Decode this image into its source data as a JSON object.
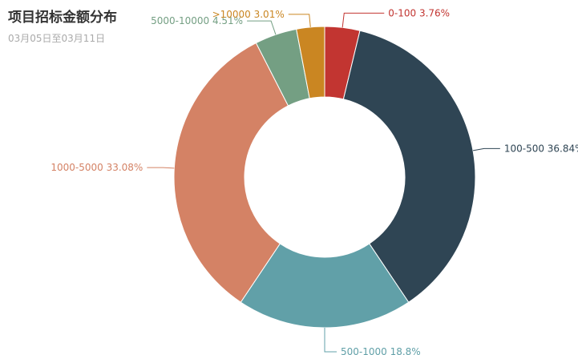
{
  "chart_data": {
    "type": "pie",
    "variant": "donut",
    "title": "项目招标金额分布",
    "subtitle": "03月05日至03月11日",
    "slices": [
      {
        "label": "0-100",
        "percent": "3.76%",
        "value": 3.76,
        "color": "#c23531"
      },
      {
        "label": "100-500",
        "percent": "36.84%",
        "value": 36.84,
        "color": "#2f4554"
      },
      {
        "label": "500-1000",
        "percent": "18.8%",
        "value": 18.8,
        "color": "#61a0a8"
      },
      {
        "label": "1000-5000",
        "percent": "33.08%",
        "value": 33.08,
        "color": "#d48265"
      },
      {
        "label": "5000-10000",
        "percent": "4.51%",
        "value": 4.51,
        "color": "#749f83"
      },
      {
        "label": ">10000",
        "percent": "3.01%",
        "value": 3.01,
        "color": "#ca8622"
      }
    ]
  }
}
